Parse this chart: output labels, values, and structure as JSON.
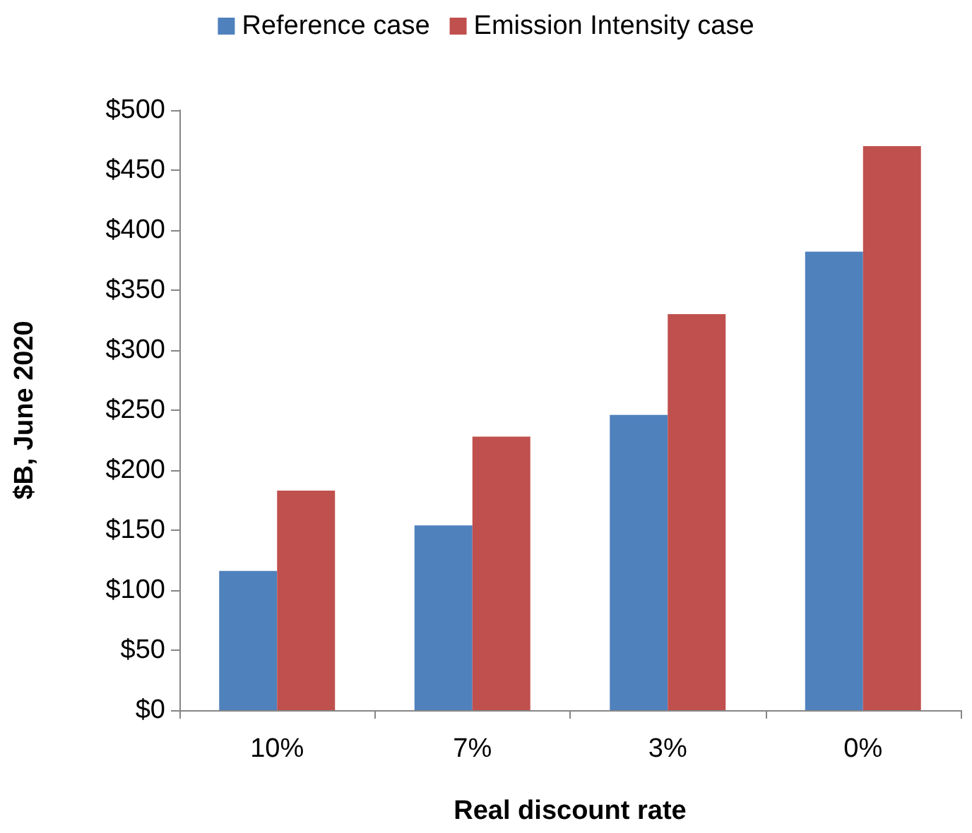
{
  "chart_data": {
    "type": "bar",
    "xlabel": "Real discount rate",
    "ylabel": "$B, June 2020",
    "categories": [
      "10%",
      "7%",
      "3%",
      "0%"
    ],
    "series": [
      {
        "name": "Reference case",
        "color": "#4f81bd",
        "values": [
          116,
          154,
          246,
          382
        ]
      },
      {
        "name": "Emission Intensity case",
        "color": "#c0504d",
        "values": [
          183,
          228,
          330,
          470
        ]
      }
    ],
    "ylim": [
      0,
      500
    ],
    "yticks": [
      {
        "value": 0,
        "label": "$0"
      },
      {
        "value": 50,
        "label": "$50"
      },
      {
        "value": 100,
        "label": "$100"
      },
      {
        "value": 150,
        "label": "$150"
      },
      {
        "value": 200,
        "label": "$200"
      },
      {
        "value": 250,
        "label": "$250"
      },
      {
        "value": 300,
        "label": "$300"
      },
      {
        "value": 350,
        "label": "$350"
      },
      {
        "value": 400,
        "label": "$400"
      },
      {
        "value": 450,
        "label": "$450"
      },
      {
        "value": 500,
        "label": "$500"
      }
    ],
    "grid": false,
    "legend": "top"
  }
}
